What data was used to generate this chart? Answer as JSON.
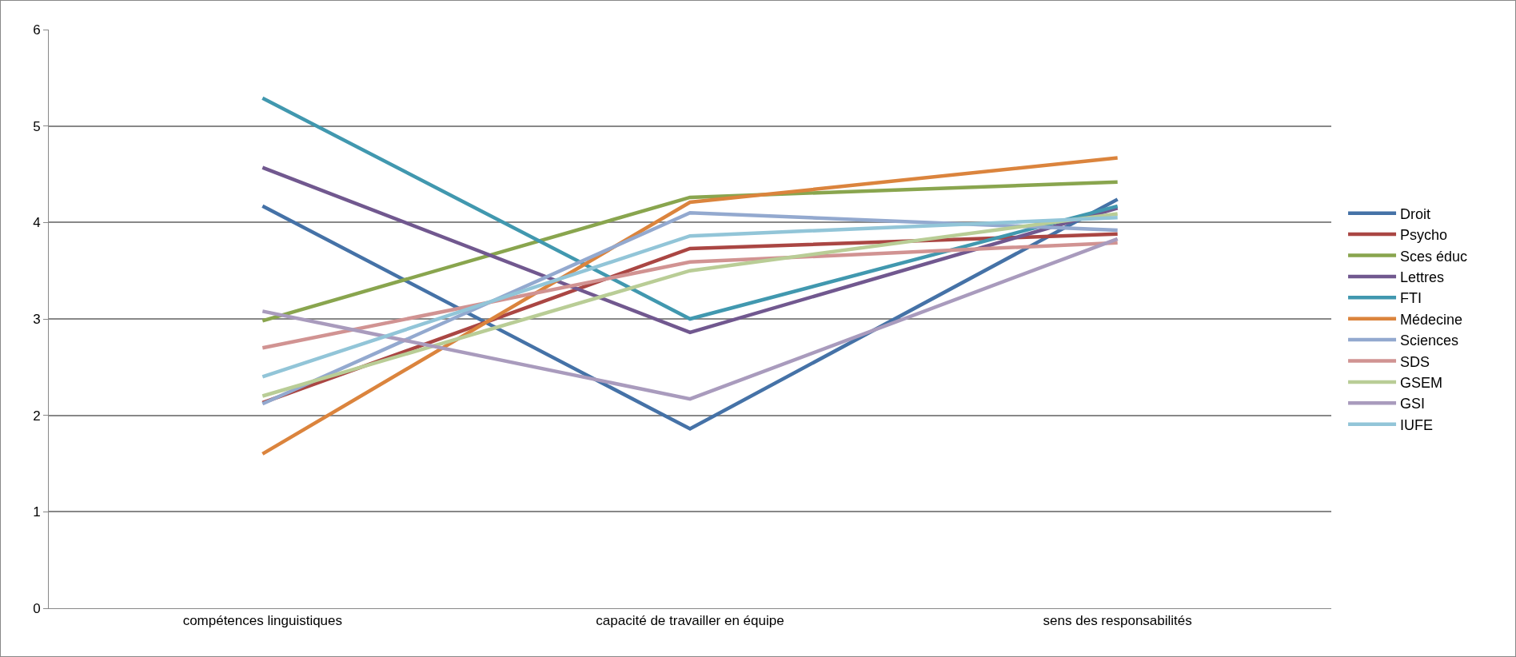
{
  "chart_data": {
    "type": "line",
    "categories": [
      "compétences linguistiques",
      "capacité de travailler en équipe",
      "sens des responsabilités"
    ],
    "ylim": [
      0,
      6
    ],
    "yticks": [
      0,
      1,
      2,
      3,
      4,
      5,
      6
    ],
    "grid": "y",
    "legend": "right",
    "marker": "none",
    "line_style": "solid",
    "series": [
      {
        "name": "Droit",
        "color": "#4572a7",
        "values": [
          4.17,
          1.86,
          4.24
        ]
      },
      {
        "name": "Psycho",
        "color": "#aa4643",
        "values": [
          2.13,
          3.73,
          3.88
        ]
      },
      {
        "name": "Sces éduc",
        "color": "#89a54e",
        "values": [
          2.98,
          4.26,
          4.42
        ]
      },
      {
        "name": "Lettres",
        "color": "#71588f",
        "values": [
          4.57,
          2.86,
          4.15
        ]
      },
      {
        "name": "FTI",
        "color": "#4198af",
        "values": [
          5.29,
          3.0,
          4.17
        ]
      },
      {
        "name": "Médecine",
        "color": "#db843d",
        "values": [
          1.6,
          4.21,
          4.67
        ]
      },
      {
        "name": "Sciences",
        "color": "#93a9cf",
        "values": [
          2.12,
          4.1,
          3.92
        ]
      },
      {
        "name": "SDS",
        "color": "#d19392",
        "values": [
          2.7,
          3.59,
          3.79
        ]
      },
      {
        "name": "GSEM",
        "color": "#b9cd96",
        "values": [
          2.2,
          3.5,
          4.09
        ]
      },
      {
        "name": "GSI",
        "color": "#a99bbd",
        "values": [
          3.08,
          2.17,
          3.83
        ]
      },
      {
        "name": "IUFE",
        "color": "#92c5d8",
        "values": [
          2.4,
          3.86,
          4.05
        ]
      }
    ]
  }
}
